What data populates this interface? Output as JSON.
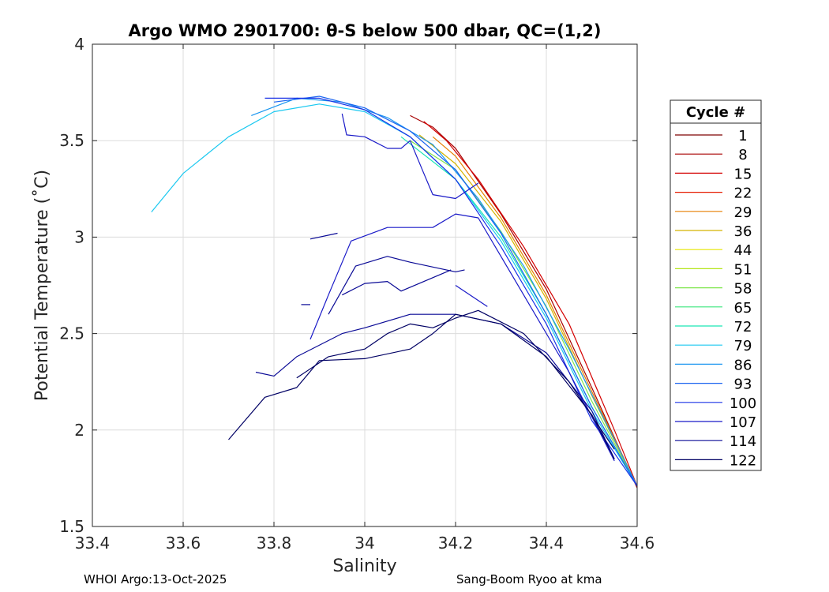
{
  "footer": {
    "left": "WHOI Argo:13-Oct-2025",
    "right": "Sang-Boom Ryoo at kma"
  },
  "chart_data": {
    "type": "line",
    "title": "Argo WMO 2901700: θ-S below 500 dbar,  QC=(1,2)",
    "xlabel": "Salinity",
    "ylabel": "Potential Temperature (˚C)",
    "xlim": [
      33.4,
      34.6
    ],
    "ylim": [
      1.5,
      4.0
    ],
    "x_ticks": [
      "33.4",
      "33.6",
      "33.8",
      "34",
      "34.2",
      "34.4",
      "34.6"
    ],
    "y_ticks": [
      "1.5",
      "2",
      "2.5",
      "3",
      "3.5",
      "4"
    ],
    "grid": true,
    "legend": {
      "title": "Cycle #",
      "placement": "right-outside",
      "entries": [
        {
          "label": "1",
          "color": "#7f0000"
        },
        {
          "label": "8",
          "color": "#a80000"
        },
        {
          "label": "15",
          "color": "#d40000"
        },
        {
          "label": "22",
          "color": "#e61a00"
        },
        {
          "label": "29",
          "color": "#e67e00"
        },
        {
          "label": "36",
          "color": "#d4b400"
        },
        {
          "label": "44",
          "color": "#e6e600"
        },
        {
          "label": "51",
          "color": "#b4e61a"
        },
        {
          "label": "58",
          "color": "#7ee64c"
        },
        {
          "label": "65",
          "color": "#3ce67e"
        },
        {
          "label": "72",
          "color": "#1ae6b4"
        },
        {
          "label": "79",
          "color": "#1ac8f0"
        },
        {
          "label": "86",
          "color": "#1a96f0"
        },
        {
          "label": "93",
          "color": "#1a64f0"
        },
        {
          "label": "100",
          "color": "#1a32e6"
        },
        {
          "label": "107",
          "color": "#1a1ac8"
        },
        {
          "label": "114",
          "color": "#0a0a96"
        },
        {
          "label": "122",
          "color": "#000064"
        }
      ]
    },
    "series": [
      {
        "color": "#a80000",
        "x": [
          34.1,
          34.15,
          34.2,
          34.3,
          34.4,
          34.5,
          34.6
        ],
        "y": [
          3.63,
          3.57,
          3.46,
          3.12,
          2.73,
          2.22,
          1.7
        ]
      },
      {
        "color": "#d40000",
        "x": [
          34.13,
          34.18,
          34.25,
          34.35,
          34.45,
          34.55,
          34.6
        ],
        "y": [
          3.6,
          3.5,
          3.3,
          2.95,
          2.55,
          2.0,
          1.71
        ]
      },
      {
        "color": "#e67e00",
        "x": [
          34.15,
          34.2,
          34.3,
          34.4,
          34.5,
          34.6
        ],
        "y": [
          3.52,
          3.42,
          3.1,
          2.7,
          2.2,
          1.71
        ]
      },
      {
        "color": "#d4b400",
        "x": [
          34.12,
          34.2,
          34.3,
          34.4,
          34.5,
          34.6
        ],
        "y": [
          3.53,
          3.38,
          3.08,
          2.68,
          2.18,
          1.71
        ]
      },
      {
        "color": "#7ee64c",
        "x": [
          34.1,
          34.2,
          34.3,
          34.4,
          34.5,
          34.6
        ],
        "y": [
          3.5,
          3.35,
          3.03,
          2.64,
          2.15,
          1.71
        ]
      },
      {
        "color": "#1ae6b4",
        "x": [
          34.08,
          34.2,
          34.3,
          34.4,
          34.5,
          34.6
        ],
        "y": [
          3.52,
          3.3,
          3.0,
          2.6,
          2.12,
          1.71
        ]
      },
      {
        "color": "#1ac8f0",
        "x": [
          33.53,
          33.6,
          33.7,
          33.8,
          33.9,
          34.0,
          34.1,
          34.2,
          34.3,
          34.4,
          34.5,
          34.6
        ],
        "y": [
          3.13,
          3.33,
          3.52,
          3.65,
          3.69,
          3.65,
          3.52,
          3.3,
          2.98,
          2.58,
          2.1,
          1.71
        ]
      },
      {
        "color": "#1a96f0",
        "x": [
          33.75,
          33.85,
          33.95,
          34.05,
          34.15,
          34.25,
          34.35,
          34.45,
          34.55,
          34.6
        ],
        "y": [
          3.63,
          3.72,
          3.7,
          3.62,
          3.48,
          3.2,
          2.85,
          2.42,
          1.95,
          1.71
        ]
      },
      {
        "color": "#1a64f0",
        "x": [
          33.8,
          33.9,
          34.0,
          34.1,
          34.2,
          34.3,
          34.4,
          34.5,
          34.6
        ],
        "y": [
          3.7,
          3.73,
          3.67,
          3.55,
          3.35,
          3.02,
          2.6,
          2.12,
          1.71
        ]
      },
      {
        "color": "#1a32e6",
        "x": [
          33.78,
          33.9,
          34.0,
          34.1,
          34.2,
          34.3,
          34.4,
          34.5,
          34.6
        ],
        "y": [
          3.72,
          3.72,
          3.66,
          3.52,
          3.3,
          2.95,
          2.55,
          2.05,
          1.71
        ]
      },
      {
        "color": "#1a1ac8",
        "x": [
          33.95,
          33.96,
          34.0,
          34.05,
          34.08,
          34.1,
          34.13,
          34.15,
          34.2,
          34.25
        ],
        "y": [
          3.64,
          3.53,
          3.52,
          3.46,
          3.46,
          3.5,
          3.33,
          3.22,
          3.2,
          3.28
        ]
      },
      {
        "color": "#0a0a96",
        "x": [
          33.88,
          33.94
        ],
        "y": [
          2.99,
          3.02
        ]
      },
      {
        "color": "#0a0a96",
        "x": [
          33.86,
          33.88
        ],
        "y": [
          2.65,
          2.65
        ]
      },
      {
        "color": "#1a1ac8",
        "x": [
          33.88,
          33.92,
          33.97,
          34.05,
          34.15,
          34.2,
          34.25,
          34.3,
          34.35,
          34.45,
          34.55
        ],
        "y": [
          2.47,
          2.7,
          2.98,
          3.05,
          3.05,
          3.12,
          3.1,
          2.9,
          2.7,
          2.3,
          1.84
        ]
      },
      {
        "color": "#0a0a96",
        "x": [
          33.92,
          33.98,
          34.05,
          34.1,
          34.2,
          34.22
        ],
        "y": [
          2.6,
          2.85,
          2.9,
          2.87,
          2.82,
          2.83
        ]
      },
      {
        "color": "#0a0a96",
        "x": [
          33.95,
          34.0,
          34.05,
          34.08,
          34.12,
          34.18,
          34.19
        ],
        "y": [
          2.7,
          2.76,
          2.77,
          2.72,
          2.76,
          2.82,
          2.83
        ]
      },
      {
        "color": "#1a1ac8",
        "x": [
          34.2,
          34.27
        ],
        "y": [
          2.75,
          2.64
        ]
      },
      {
        "color": "#0a0a96",
        "x": [
          33.76,
          33.8,
          33.85,
          33.95,
          34.0,
          34.1,
          34.2,
          34.3,
          34.4,
          34.5,
          34.55
        ],
        "y": [
          2.3,
          2.28,
          2.38,
          2.5,
          2.53,
          2.6,
          2.6,
          2.55,
          2.4,
          2.1,
          1.85
        ]
      },
      {
        "color": "#000064",
        "x": [
          33.7,
          33.78,
          33.85,
          33.9,
          34.0,
          34.1,
          34.15,
          34.2,
          34.3,
          34.4,
          34.5,
          34.55
        ],
        "y": [
          1.95,
          2.17,
          2.22,
          2.36,
          2.37,
          2.42,
          2.5,
          2.6,
          2.55,
          2.38,
          2.08,
          1.85
        ]
      },
      {
        "color": "#000064",
        "x": [
          33.85,
          33.92,
          34.0,
          34.05,
          34.1,
          34.15,
          34.2,
          34.25,
          34.35,
          34.45,
          34.55
        ],
        "y": [
          2.27,
          2.38,
          2.42,
          2.5,
          2.55,
          2.53,
          2.58,
          2.62,
          2.5,
          2.25,
          1.9
        ]
      }
    ]
  }
}
